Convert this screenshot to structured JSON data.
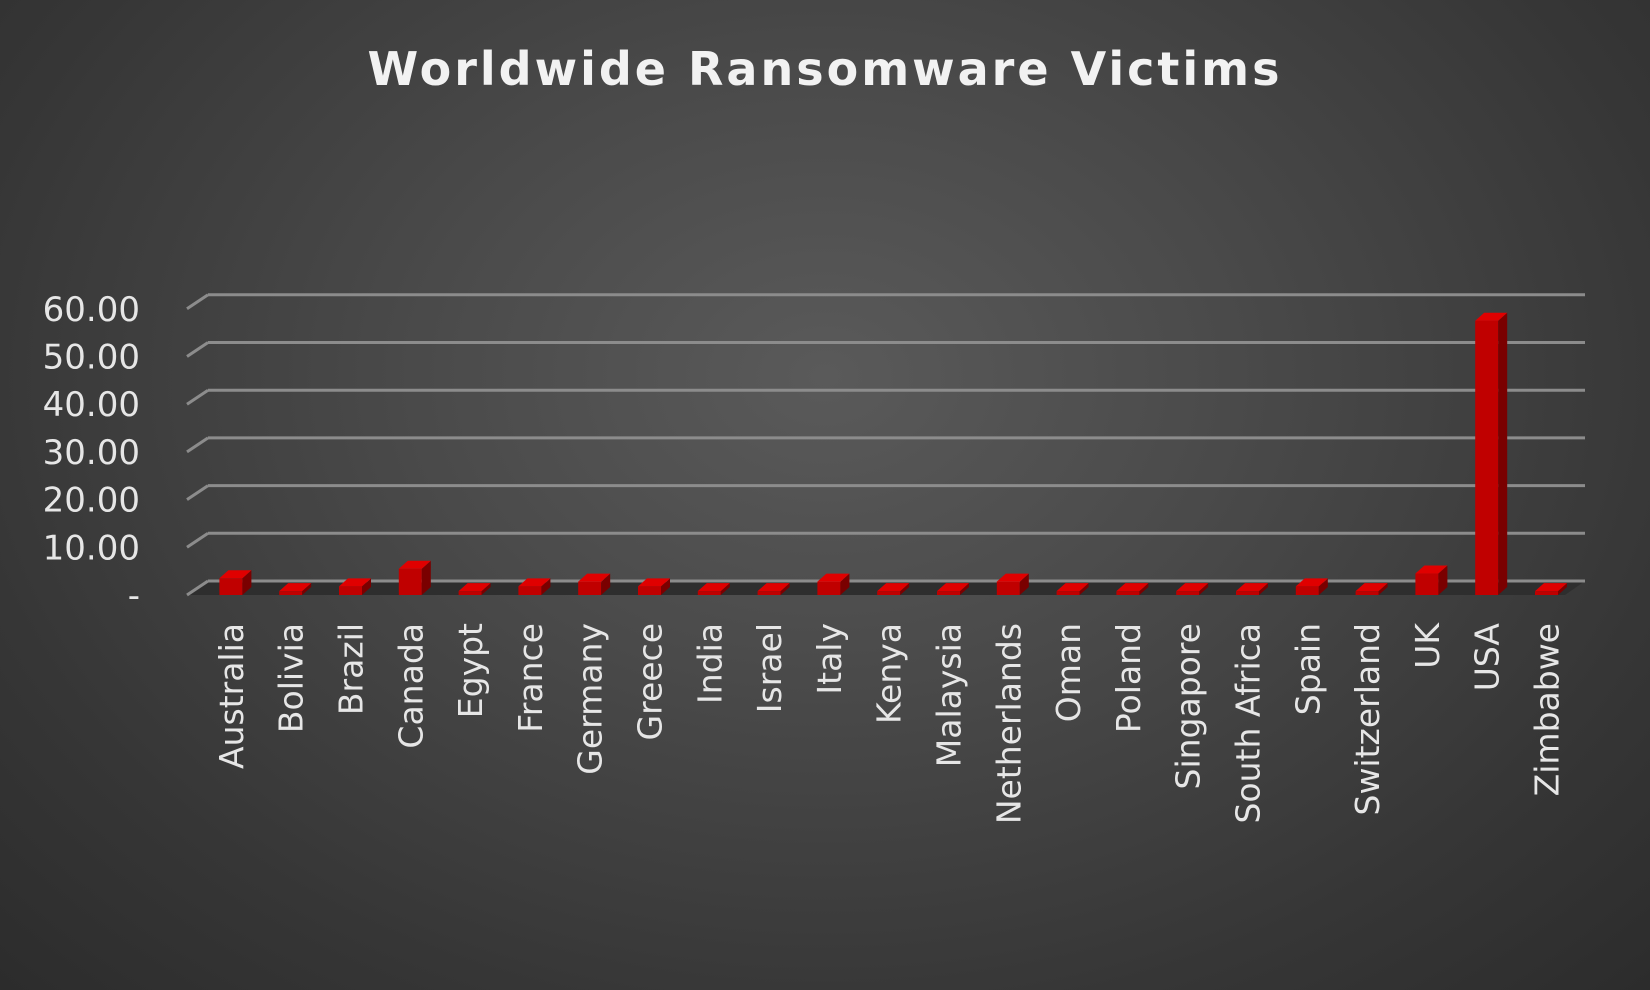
{
  "chart_data": {
    "type": "bar",
    "title": "Worldwide Ransomware Victims",
    "xlabel": "",
    "ylabel": "",
    "ylim": [
      0,
      60
    ],
    "yticks": [
      {
        "value": 0,
        "label": "-"
      },
      {
        "value": 10,
        "label": "10.00"
      },
      {
        "value": 20,
        "label": "20.00"
      },
      {
        "value": 30,
        "label": "30.00"
      },
      {
        "value": 40,
        "label": "40.00"
      },
      {
        "value": 50,
        "label": "50.00"
      },
      {
        "value": 60,
        "label": "60.00"
      }
    ],
    "grid": true,
    "legend": "none",
    "bar_color": "#c00000",
    "categories": [
      "Australia",
      "Bolivia",
      "Brazil",
      "Canada",
      "Egypt",
      "France",
      "Germany",
      "Greece",
      "India",
      "Israel",
      "Italy",
      "Kenya",
      "Malaysia",
      "Netherlands",
      "Oman",
      "Poland",
      "Singapore",
      "South Africa",
      "Spain",
      "Switzerland",
      "UK",
      "USA",
      "Zimbabwe"
    ],
    "values": [
      3.5,
      0.8,
      1.8,
      5.5,
      0.8,
      1.8,
      2.8,
      1.8,
      0.8,
      0.8,
      2.8,
      0.8,
      0.8,
      2.8,
      0.8,
      0.8,
      0.8,
      0.8,
      1.8,
      0.8,
      4.5,
      57.5,
      0.8
    ]
  }
}
